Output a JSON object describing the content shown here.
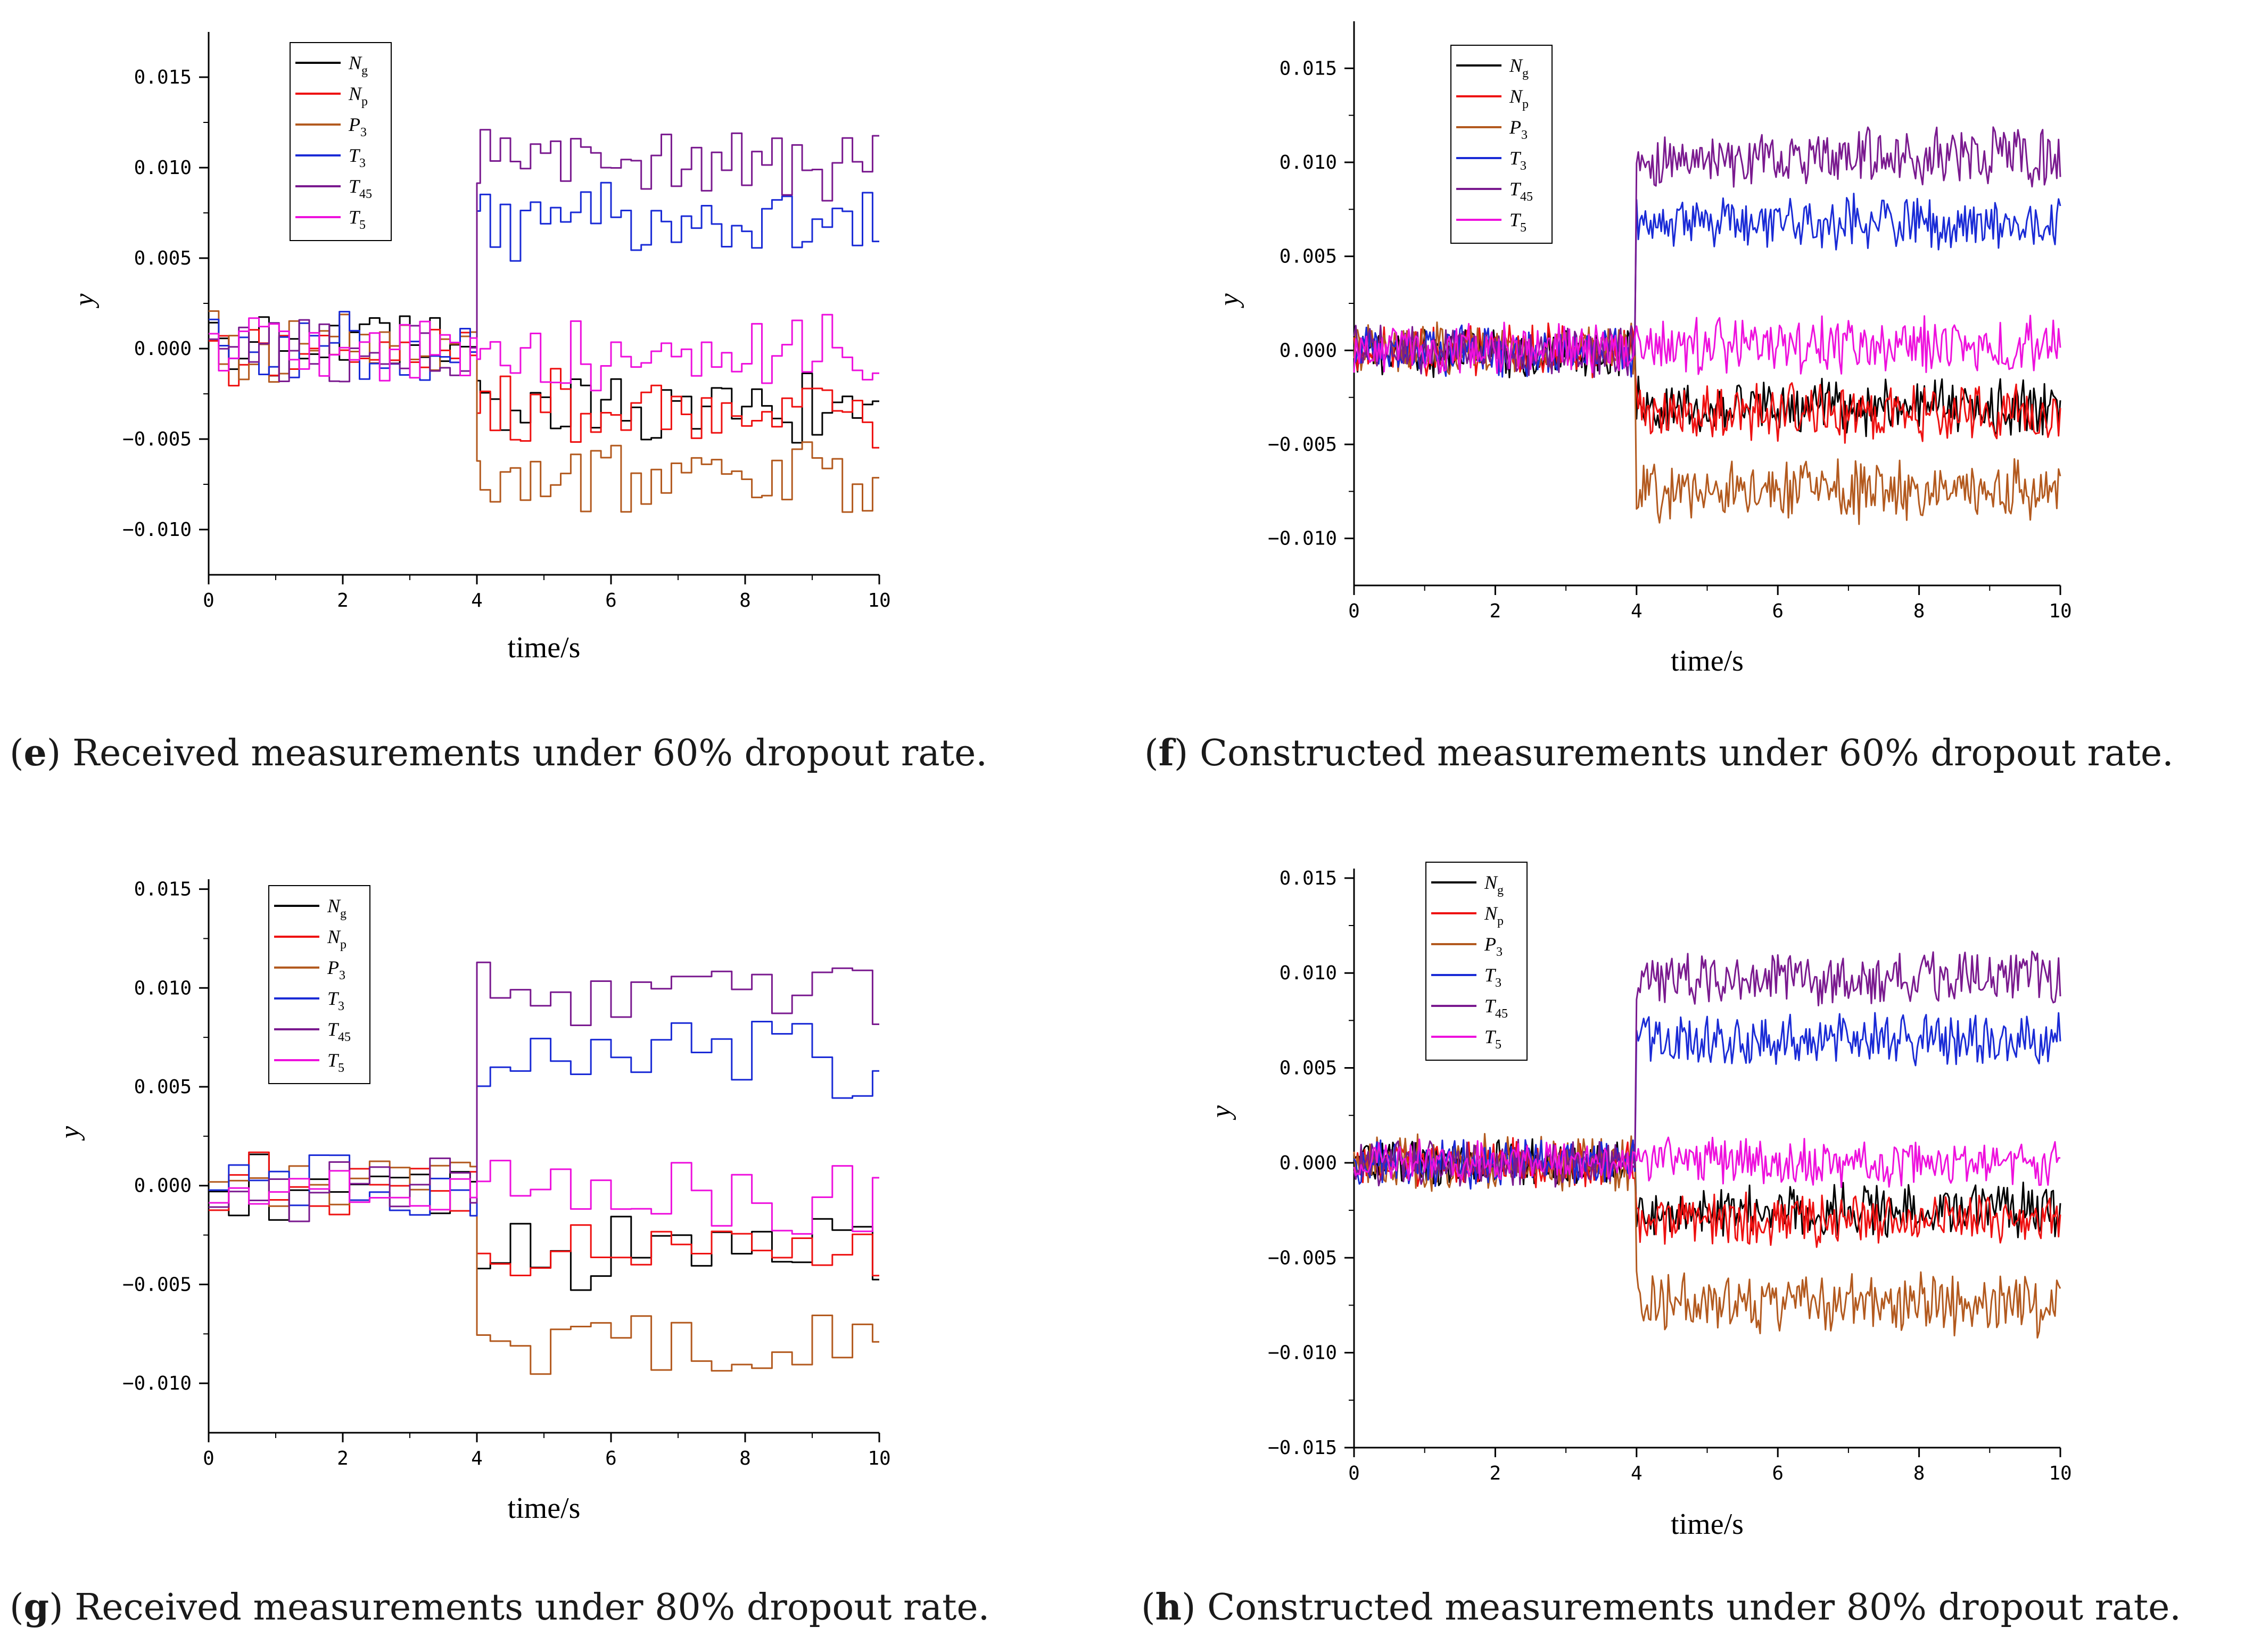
{
  "colors": {
    "Ng": "#000000",
    "Np": "#ee1111",
    "P3": "#b35a1f",
    "T3": "#1a2bd6",
    "T45": "#7a1a8f",
    "T5": "#ee11dd"
  },
  "captions": [
    {
      "letter": "e",
      "text": " Received measurements under 60% dropout rate."
    },
    {
      "letter": "f",
      "text": " Constructed measurements under 60% dropout rate."
    },
    {
      "letter": "g",
      "text": " Received measurements under 80% dropout rate."
    },
    {
      "letter": "h",
      "text": " Constructed measurements under 80% dropout rate."
    }
  ],
  "chart_data": [
    {
      "id": "e",
      "type": "line",
      "mode": "received",
      "xlabel": "time/s",
      "ylabel": "y",
      "xlim": [
        0,
        10
      ],
      "ylim": [
        -0.0125,
        0.0175
      ],
      "xticks": [
        "0",
        "2",
        "4",
        "6",
        "8",
        "10"
      ],
      "xtick_values": [
        0,
        2,
        4,
        6,
        8,
        10
      ],
      "yticks": [
        "0.015",
        "0.010",
        "0.005",
        "0.000",
        "−0.005",
        "−0.010"
      ],
      "ytick_values": [
        0.015,
        0.01,
        0.005,
        0.0,
        -0.005,
        -0.01
      ],
      "legend": [
        {
          "key": "Ng",
          "main": "N",
          "sub": "g"
        },
        {
          "key": "Np",
          "main": "N",
          "sub": "p"
        },
        {
          "key": "P3",
          "main": "P",
          "sub": "3"
        },
        {
          "key": "T3",
          "main": "T",
          "sub": "3"
        },
        {
          "key": "T45",
          "main": "T",
          "sub": "45"
        },
        {
          "key": "T5",
          "main": "T",
          "sub": "5"
        }
      ],
      "series": [
        {
          "key": "Ng",
          "before": 0.0,
          "after": -0.0033,
          "noise": 0.0017,
          "hold": 6,
          "seed": 11
        },
        {
          "key": "Np",
          "before": 0.0,
          "after": -0.0032,
          "noise": 0.0017,
          "hold": 6,
          "seed": 23
        },
        {
          "key": "P3",
          "before": 0.0,
          "after": -0.0072,
          "noise": 0.0018,
          "hold": 6,
          "seed": 37
        },
        {
          "key": "T3",
          "before": 0.0,
          "after": 0.0068,
          "noise": 0.0018,
          "hold": 6,
          "seed": 41
        },
        {
          "key": "T45",
          "before": 0.0,
          "after": 0.0105,
          "noise": 0.0017,
          "hold": 6,
          "seed": 53
        },
        {
          "key": "T5",
          "before": 0.0,
          "after": -0.0002,
          "noise": 0.0017,
          "hold": 6,
          "seed": 67
        }
      ]
    },
    {
      "id": "f",
      "type": "line",
      "mode": "constructed",
      "xlabel": "time/s",
      "ylabel": "y",
      "xlim": [
        0,
        10
      ],
      "ylim": [
        -0.0125,
        0.0175
      ],
      "xticks": [
        "0",
        "2",
        "4",
        "6",
        "8",
        "10"
      ],
      "xtick_values": [
        0,
        2,
        4,
        6,
        8,
        10
      ],
      "yticks": [
        "0.015",
        "0.010",
        "0.005",
        "0.000",
        "−0.005",
        "−0.010"
      ],
      "ytick_values": [
        0.015,
        0.01,
        0.005,
        0.0,
        -0.005,
        -0.01
      ],
      "legend": [
        {
          "key": "Ng",
          "main": "N",
          "sub": "g"
        },
        {
          "key": "Np",
          "main": "N",
          "sub": "p"
        },
        {
          "key": "P3",
          "main": "P",
          "sub": "3"
        },
        {
          "key": "T3",
          "main": "T",
          "sub": "3"
        },
        {
          "key": "T45",
          "main": "T",
          "sub": "45"
        },
        {
          "key": "T5",
          "main": "T",
          "sub": "5"
        }
      ],
      "series": [
        {
          "key": "Ng",
          "before": 0.0,
          "after": -0.003,
          "noise": 0.0012,
          "hold": 1,
          "seed": 12
        },
        {
          "key": "Np",
          "before": 0.0,
          "after": -0.0033,
          "noise": 0.0012,
          "hold": 1,
          "seed": 24
        },
        {
          "key": "P3",
          "before": 0.0,
          "after": -0.0075,
          "noise": 0.0013,
          "hold": 1,
          "seed": 38
        },
        {
          "key": "T3",
          "before": 0.0,
          "after": 0.0068,
          "noise": 0.0012,
          "hold": 1,
          "seed": 42
        },
        {
          "key": "T45",
          "before": 0.0,
          "after": 0.0103,
          "noise": 0.0012,
          "hold": 1,
          "seed": 54
        },
        {
          "key": "T5",
          "before": 0.0,
          "after": 0.0003,
          "noise": 0.0012,
          "hold": 1,
          "seed": 68
        }
      ]
    },
    {
      "id": "g",
      "type": "line",
      "mode": "received",
      "xlabel": "time/s",
      "ylabel": "y",
      "xlim": [
        0,
        10
      ],
      "ylim": [
        -0.0125,
        0.0155
      ],
      "xticks": [
        "0",
        "2",
        "4",
        "6",
        "8",
        "10"
      ],
      "xtick_values": [
        0,
        2,
        4,
        6,
        8,
        10
      ],
      "yticks": [
        "0.015",
        "0.010",
        "0.005",
        "0.000",
        "−0.005",
        "−0.010"
      ],
      "ytick_values": [
        0.015,
        0.01,
        0.005,
        0.0,
        -0.005,
        -0.01
      ],
      "legend": [
        {
          "key": "Ng",
          "main": "N",
          "sub": "g"
        },
        {
          "key": "Np",
          "main": "N",
          "sub": "p"
        },
        {
          "key": "P3",
          "main": "P",
          "sub": "3"
        },
        {
          "key": "T3",
          "main": "T",
          "sub": "3"
        },
        {
          "key": "T45",
          "main": "T",
          "sub": "45"
        },
        {
          "key": "T5",
          "main": "T",
          "sub": "5"
        }
      ],
      "series": [
        {
          "key": "Ng",
          "before": 0.0,
          "after": -0.0033,
          "noise": 0.0016,
          "hold": 12,
          "seed": 13
        },
        {
          "key": "Np",
          "before": 0.0,
          "after": -0.0035,
          "noise": 0.0016,
          "hold": 12,
          "seed": 25
        },
        {
          "key": "P3",
          "before": 0.0,
          "after": -0.0082,
          "noise": 0.0015,
          "hold": 12,
          "seed": 39
        },
        {
          "key": "T3",
          "before": 0.0,
          "after": 0.0065,
          "noise": 0.0017,
          "hold": 12,
          "seed": 43
        },
        {
          "key": "T45",
          "before": 0.0,
          "after": 0.0098,
          "noise": 0.0015,
          "hold": 12,
          "seed": 55
        },
        {
          "key": "T5",
          "before": 0.0,
          "after": -0.0005,
          "noise": 0.0016,
          "hold": 12,
          "seed": 69
        }
      ]
    },
    {
      "id": "h",
      "type": "line",
      "mode": "constructed",
      "xlabel": "time/s",
      "ylabel": "y",
      "xlim": [
        0,
        10
      ],
      "ylim": [
        -0.015,
        0.0155
      ],
      "xticks": [
        "0",
        "2",
        "4",
        "6",
        "8",
        "10"
      ],
      "xtick_values": [
        0,
        2,
        4,
        6,
        8,
        10
      ],
      "yticks": [
        "0.015",
        "0.010",
        "0.005",
        "0.000",
        "−0.005",
        "−0.010",
        "−0.015"
      ],
      "ytick_values": [
        0.015,
        0.01,
        0.005,
        0.0,
        -0.005,
        -0.01,
        -0.015
      ],
      "legend": [
        {
          "key": "Ng",
          "main": "N",
          "sub": "g"
        },
        {
          "key": "Np",
          "main": "N",
          "sub": "p"
        },
        {
          "key": "P3",
          "main": "P",
          "sub": "3"
        },
        {
          "key": "T3",
          "main": "T",
          "sub": "3"
        },
        {
          "key": "T45",
          "main": "T",
          "sub": "45"
        },
        {
          "key": "T5",
          "main": "T",
          "sub": "5"
        }
      ],
      "series": [
        {
          "key": "Ng",
          "before": 0.0,
          "after": -0.0025,
          "noise": 0.0011,
          "hold": 1,
          "seed": 14
        },
        {
          "key": "Np",
          "before": 0.0,
          "after": -0.003,
          "noise": 0.0011,
          "hold": 1,
          "seed": 26
        },
        {
          "key": "P3",
          "before": 0.0,
          "after": -0.0075,
          "noise": 0.0013,
          "hold": 1,
          "seed": 40
        },
        {
          "key": "T3",
          "before": 0.0,
          "after": 0.0065,
          "noise": 0.0011,
          "hold": 1,
          "seed": 44
        },
        {
          "key": "T45",
          "before": 0.0,
          "after": 0.0097,
          "noise": 0.0011,
          "hold": 1,
          "seed": 56
        },
        {
          "key": "T5",
          "before": 0.0,
          "after": 0.0,
          "noise": 0.001,
          "hold": 1,
          "seed": 70
        }
      ]
    }
  ]
}
